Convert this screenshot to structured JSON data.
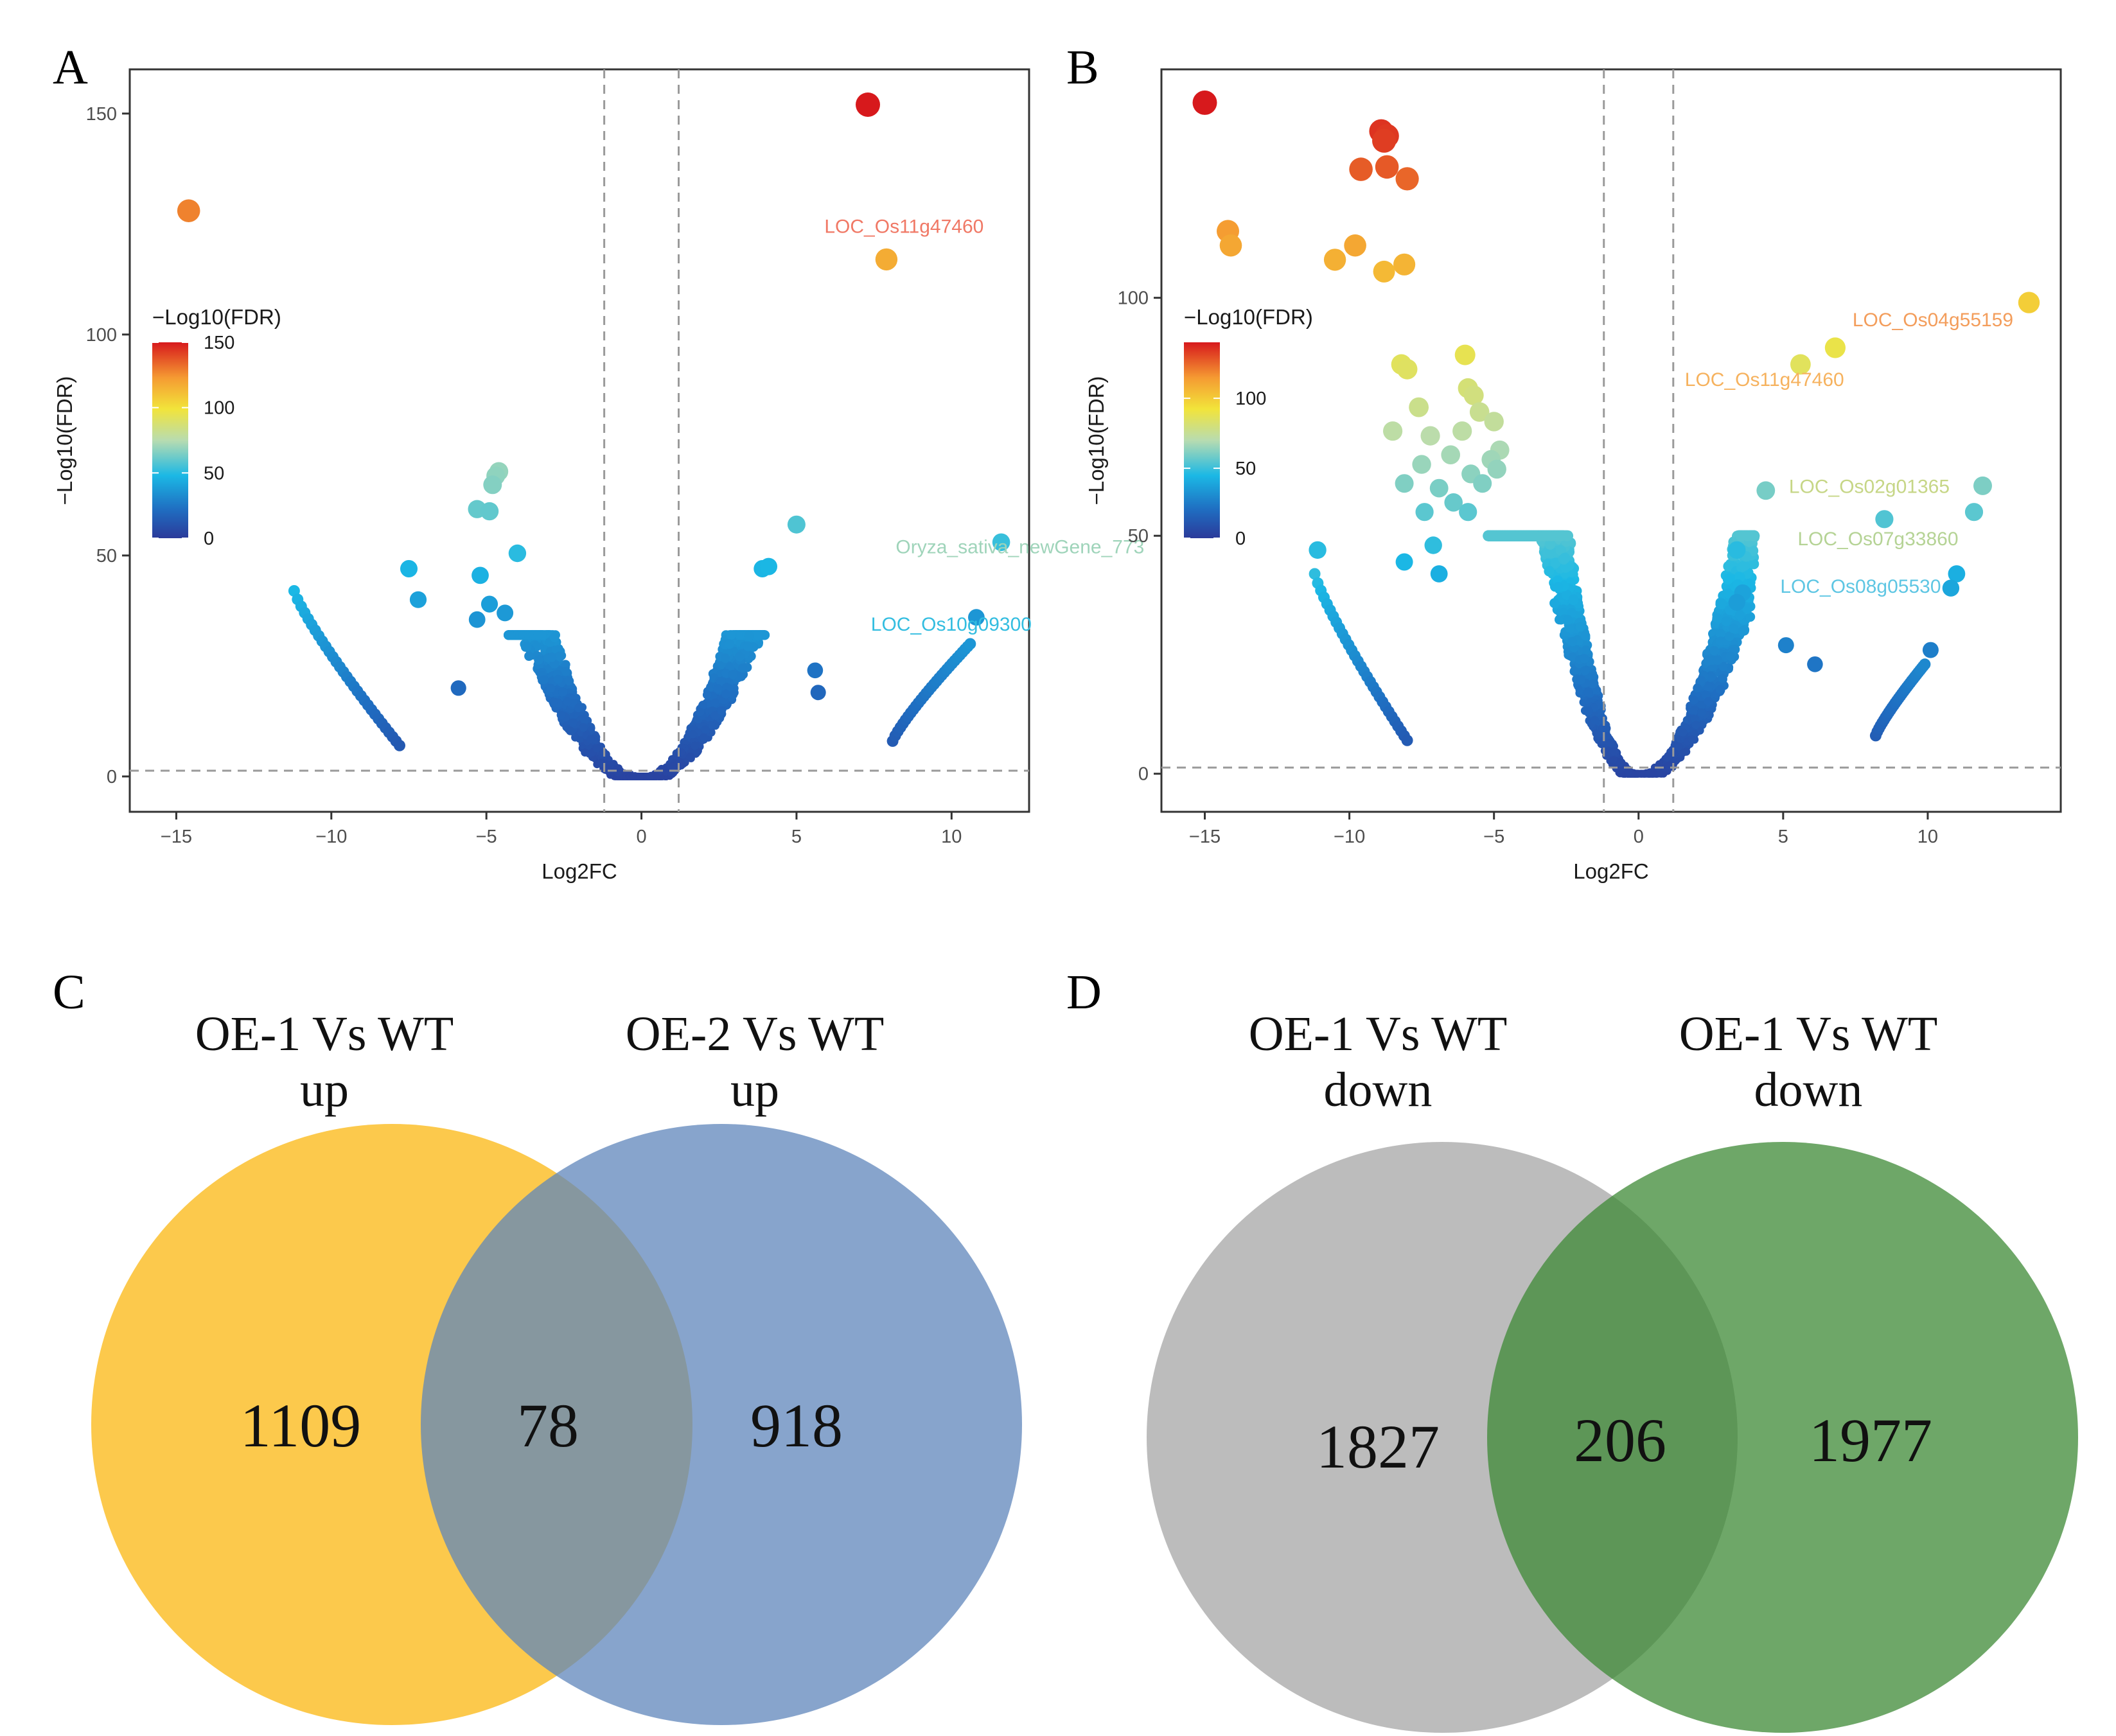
{
  "chart_data": [
    {
      "panel": "A",
      "type": "scatter",
      "xlabel": "Log2FC",
      "ylabel": "−Log10(FDR)",
      "xlim": [
        -16.5,
        12.5
      ],
      "ylim": [
        -8,
        160
      ],
      "xticks": [
        -15,
        -10,
        -5,
        0,
        5,
        10
      ],
      "yticks": [
        0,
        50,
        100,
        150
      ],
      "thresholds": {
        "log2fc": [
          -1.2,
          1.2
        ],
        "neglog10fdr": 1.3
      },
      "colorbar": {
        "title": "−Log10(FDR)",
        "ticks": [
          0,
          50,
          100,
          150
        ],
        "max": 150
      },
      "highlight_points": [
        {
          "x": -14.6,
          "y": 128
        },
        {
          "x": 7.3,
          "y": 152
        },
        {
          "x": 7.9,
          "y": 117
        },
        {
          "x": 5.0,
          "y": 57
        },
        {
          "x": 11.6,
          "y": 53
        },
        {
          "x": 3.9,
          "y": 47
        },
        {
          "x": 4.1,
          "y": 47.5
        },
        {
          "x": 10.8,
          "y": 36
        },
        {
          "x": -4.6,
          "y": 69
        },
        {
          "x": -4.7,
          "y": 68
        },
        {
          "x": -4.8,
          "y": 66
        },
        {
          "x": -5.3,
          "y": 60.5
        },
        {
          "x": -4.9,
          "y": 60
        },
        {
          "x": -4.0,
          "y": 50.5
        },
        {
          "x": -5.2,
          "y": 45.5
        },
        {
          "x": -7.5,
          "y": 47
        },
        {
          "x": -7.2,
          "y": 40
        },
        {
          "x": -4.9,
          "y": 39
        },
        {
          "x": -5.3,
          "y": 35.5
        },
        {
          "x": -4.4,
          "y": 37
        },
        {
          "x": 5.6,
          "y": 24
        },
        {
          "x": 5.7,
          "y": 19
        },
        {
          "x": -5.9,
          "y": 20
        }
      ],
      "arcs": [
        {
          "x_from": -11.2,
          "x_to": -7.8,
          "y_from": 42,
          "y_to": 7
        },
        {
          "x_from": 8.1,
          "x_to": 10.6,
          "y_from": 8,
          "y_to": 30
        }
      ],
      "annotations": [
        {
          "text": "LOC_Os11g47460",
          "x": 5.9,
          "y": 123,
          "color": "#f07865"
        },
        {
          "text": "Oryza_sativa_newGene_773",
          "x": 8.2,
          "y": 50.5,
          "color": "#9fd4ba"
        },
        {
          "text": "LOC_Os10g09300",
          "x": 7.4,
          "y": 33,
          "color": "#33bde0"
        }
      ]
    },
    {
      "panel": "B",
      "type": "scatter",
      "xlabel": "Log2FC",
      "ylabel": "−Log10(FDR)",
      "xlim": [
        -16.5,
        14.6
      ],
      "ylim": [
        -8,
        148
      ],
      "xticks": [
        -15,
        -10,
        -5,
        0,
        5,
        10
      ],
      "yticks": [
        0,
        50,
        100
      ],
      "thresholds": {
        "log2fc": [
          -1.2,
          1.2
        ],
        "neglog10fdr": 1.3
      },
      "colorbar": {
        "title": "−Log10(FDR)",
        "ticks": [
          0,
          50,
          100
        ],
        "max": 140
      },
      "highlight_points": [
        {
          "x": -15.0,
          "y": 141
        },
        {
          "x": -8.9,
          "y": 135
        },
        {
          "x": -8.7,
          "y": 134
        },
        {
          "x": -8.8,
          "y": 133
        },
        {
          "x": -9.6,
          "y": 127
        },
        {
          "x": -8.7,
          "y": 127.5
        },
        {
          "x": -8.0,
          "y": 125
        },
        {
          "x": -14.2,
          "y": 114
        },
        {
          "x": -14.1,
          "y": 111
        },
        {
          "x": -9.8,
          "y": 111
        },
        {
          "x": -10.5,
          "y": 108
        },
        {
          "x": -8.1,
          "y": 107
        },
        {
          "x": -8.8,
          "y": 105.5
        },
        {
          "x": 13.5,
          "y": 99
        },
        {
          "x": 6.8,
          "y": 89.5
        },
        {
          "x": 5.6,
          "y": 86
        },
        {
          "x": -8.2,
          "y": 86
        },
        {
          "x": -8.0,
          "y": 85
        },
        {
          "x": -6.0,
          "y": 88
        },
        {
          "x": -5.9,
          "y": 81
        },
        {
          "x": -5.7,
          "y": 79.5
        },
        {
          "x": -7.6,
          "y": 77
        },
        {
          "x": -5.5,
          "y": 76
        },
        {
          "x": -5.0,
          "y": 74
        },
        {
          "x": -8.5,
          "y": 72
        },
        {
          "x": -7.2,
          "y": 71
        },
        {
          "x": -6.1,
          "y": 72
        },
        {
          "x": -4.8,
          "y": 68
        },
        {
          "x": -5.1,
          "y": 66
        },
        {
          "x": -6.5,
          "y": 67
        },
        {
          "x": -7.5,
          "y": 65
        },
        {
          "x": -4.9,
          "y": 64
        },
        {
          "x": -5.8,
          "y": 63
        },
        {
          "x": -8.1,
          "y": 61
        },
        {
          "x": -6.9,
          "y": 60
        },
        {
          "x": -5.4,
          "y": 61
        },
        {
          "x": 4.4,
          "y": 59.5
        },
        {
          "x": 11.9,
          "y": 60.5
        },
        {
          "x": 11.6,
          "y": 55
        },
        {
          "x": 8.5,
          "y": 53.5
        },
        {
          "x": 3.4,
          "y": 47
        },
        {
          "x": 11.0,
          "y": 42
        },
        {
          "x": 10.8,
          "y": 39
        },
        {
          "x": -7.4,
          "y": 55
        },
        {
          "x": -6.4,
          "y": 57
        },
        {
          "x": -5.9,
          "y": 55
        },
        {
          "x": -7.1,
          "y": 48
        },
        {
          "x": -8.1,
          "y": 44.5
        },
        {
          "x": -6.9,
          "y": 42
        },
        {
          "x": -11.1,
          "y": 47
        },
        {
          "x": 3.6,
          "y": 38
        },
        {
          "x": 3.4,
          "y": 36
        },
        {
          "x": 5.1,
          "y": 27
        },
        {
          "x": 10.1,
          "y": 26
        },
        {
          "x": 6.1,
          "y": 23
        }
      ],
      "arcs": [
        {
          "x_from": -11.2,
          "x_to": -8.0,
          "y_from": 42,
          "y_to": 7
        },
        {
          "x_from": 8.2,
          "x_to": 9.9,
          "y_from": 8,
          "y_to": 23
        }
      ],
      "annotations": [
        {
          "text": "LOC_Os04g55159",
          "x": 7.4,
          "y": 94,
          "color": "#f39d5b"
        },
        {
          "text": "LOC_Os11g47460",
          "x": 1.6,
          "y": 81.5,
          "color": "#f6b25e"
        },
        {
          "text": "LOC_Os02g01365",
          "x": 5.2,
          "y": 59,
          "color": "#c6d686"
        },
        {
          "text": "LOC_Os07g33860",
          "x": 5.5,
          "y": 48,
          "color": "#b5d395"
        },
        {
          "text": "LOC_Os08g05530",
          "x": 4.9,
          "y": 38,
          "color": "#5ec6e3"
        }
      ]
    },
    {
      "panel": "C",
      "type": "venn",
      "sets": [
        {
          "label_line1": "OE-1 Vs WT",
          "label_line2": "up",
          "only": "1109",
          "color": "#fbc02d"
        },
        {
          "label_line1": "OE-2 Vs WT",
          "label_line2": "up",
          "only": "918",
          "color": "#5f86bb"
        }
      ],
      "intersection": "78"
    },
    {
      "panel": "D",
      "type": "venn",
      "sets": [
        {
          "label_line1": "OE-1 Vs WT",
          "label_line2": "down",
          "only": "1827",
          "color": "#a9a9a9"
        },
        {
          "label_line1": "OE-1 Vs WT",
          "label_line2": "down",
          "only": "1977",
          "color": "#3e8a35"
        }
      ],
      "intersection": "206"
    }
  ]
}
